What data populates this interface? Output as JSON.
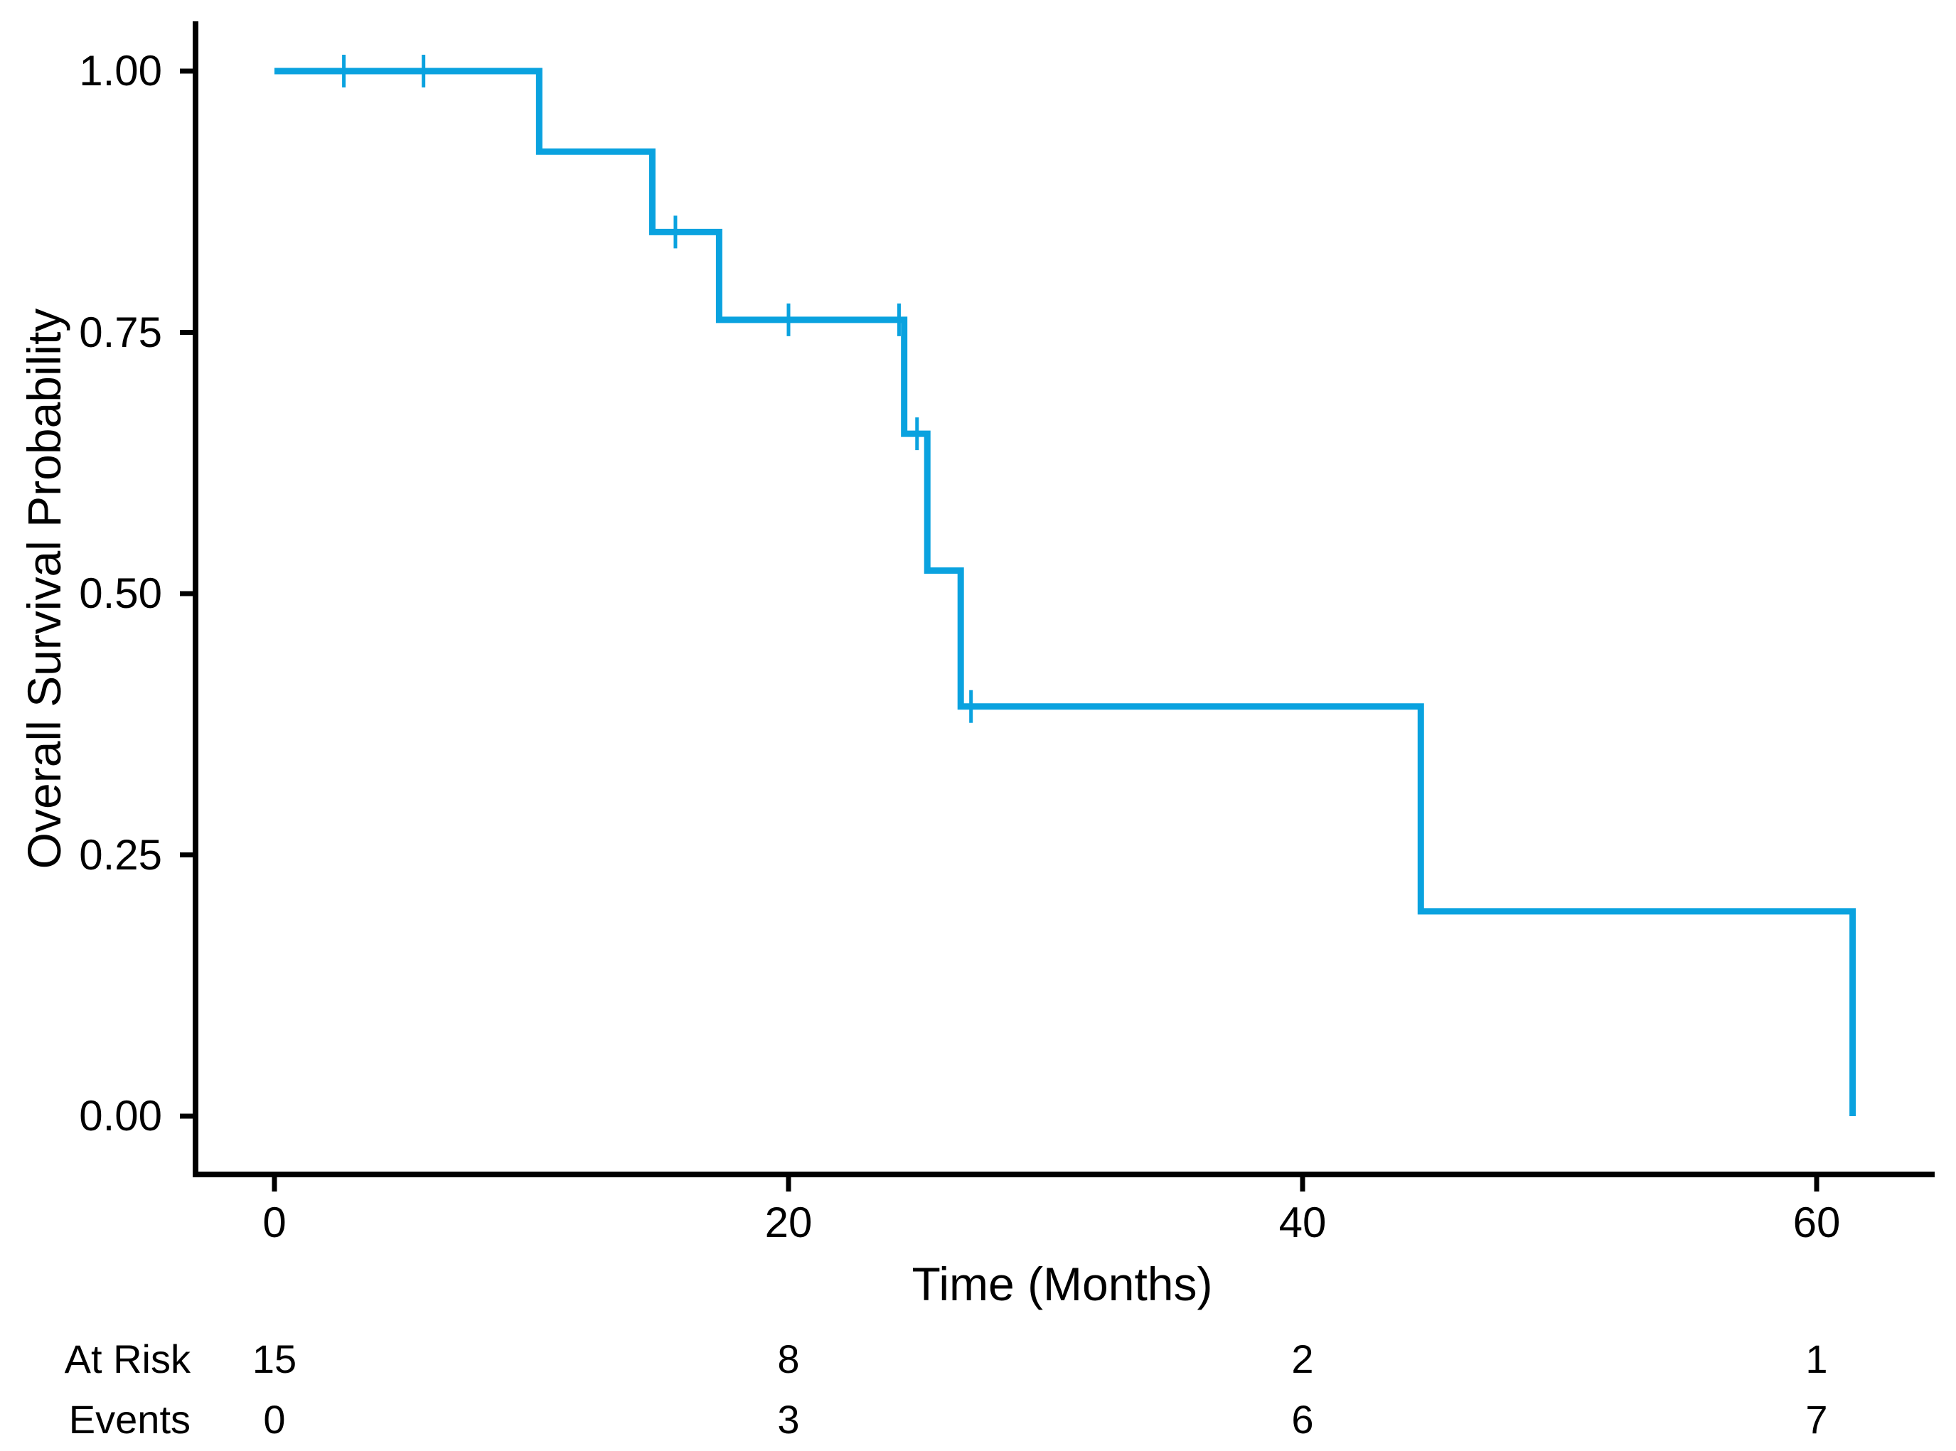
{
  "figure": {
    "colors": {
      "curve": "#0AA2DF",
      "axis": "#000000",
      "text": "#000000",
      "background": "#FFFFFF"
    }
  },
  "chart_data": {
    "type": "line",
    "subtype": "kaplan_meier_step_curve",
    "title": "",
    "xlabel": "Time (Months)",
    "ylabel": "Overall Survival Probability",
    "xlim": [
      0,
      62
    ],
    "ylim": [
      0.0,
      1.0
    ],
    "grid": false,
    "legend_position": "none",
    "x_tick_values": [
      0,
      20,
      40,
      60
    ],
    "x_tick_labels": [
      "0",
      "20",
      "40",
      "60"
    ],
    "y_tick_values": [
      1.0,
      0.75,
      0.5,
      0.25,
      0.0
    ],
    "y_tick_labels": [
      "1.00",
      "0.75",
      "0.50",
      "0.25",
      "0.00"
    ],
    "series": [
      {
        "name": "Overall Survival",
        "color": "#0AA2DF",
        "steps": [
          {
            "time": 0.0,
            "survival": 1.0
          },
          {
            "time": 10.3,
            "survival": 0.923
          },
          {
            "time": 14.7,
            "survival": 0.846
          },
          {
            "time": 17.3,
            "survival": 0.762
          },
          {
            "time": 24.5,
            "survival": 0.653
          },
          {
            "time": 25.4,
            "survival": 0.522
          },
          {
            "time": 26.7,
            "survival": 0.392
          },
          {
            "time": 44.6,
            "survival": 0.196
          },
          {
            "time": 61.4,
            "survival": 0.0
          }
        ],
        "censor_marks": [
          {
            "time": 2.7,
            "survival": 1.0
          },
          {
            "time": 5.8,
            "survival": 1.0
          },
          {
            "time": 15.6,
            "survival": 0.846
          },
          {
            "time": 20.0,
            "survival": 0.762
          },
          {
            "time": 24.3,
            "survival": 0.762
          },
          {
            "time": 25.0,
            "survival": 0.653
          },
          {
            "time": 27.1,
            "survival": 0.392
          }
        ]
      }
    ]
  },
  "risk_table": {
    "time_points": [
      0,
      20,
      40,
      60
    ],
    "rows": [
      {
        "label": "At Risk",
        "values": [
          "15",
          "8",
          "2",
          "1"
        ]
      },
      {
        "label": "Events",
        "values": [
          "0",
          "3",
          "6",
          "7"
        ]
      }
    ]
  }
}
